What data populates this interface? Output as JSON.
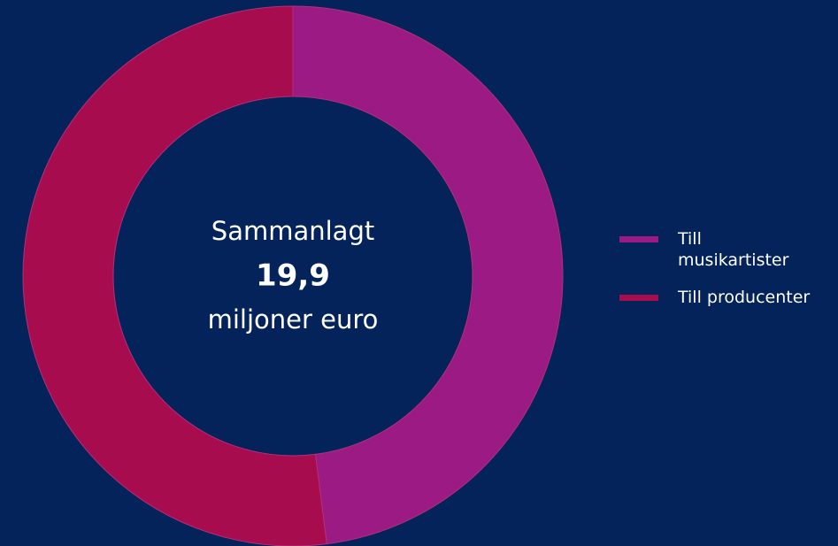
{
  "chart_data": {
    "type": "pie",
    "categories": [
      "Till musikartister",
      "Till producenter"
    ],
    "values": [
      48,
      52
    ],
    "colors": [
      "#9b1a83",
      "#a70d4e"
    ],
    "center_text": [
      "Sammanlagt",
      "19,9",
      "miljoner euro"
    ],
    "legend": "right"
  }
}
